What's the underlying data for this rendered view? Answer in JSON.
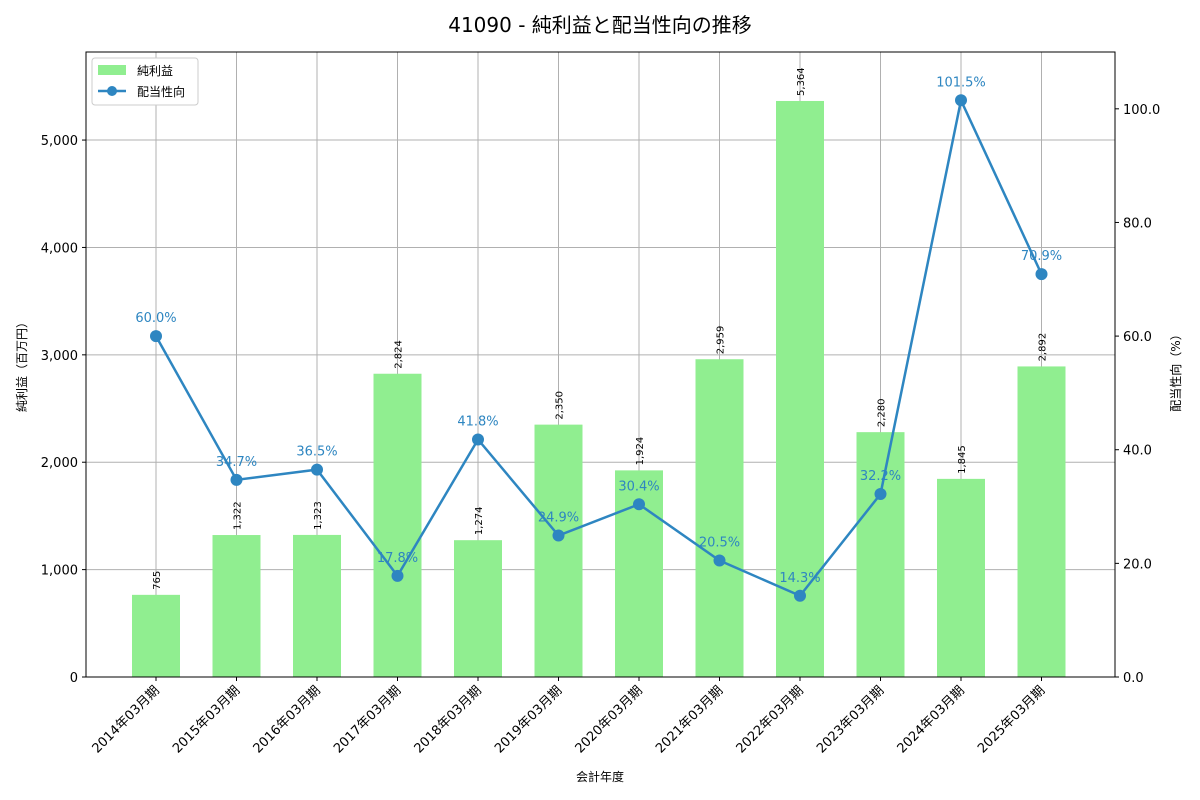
{
  "chart_data": {
    "type": "bar+line",
    "title": "41090 - 純利益と配当性向の推移",
    "xlabel": "会計年度",
    "ylabel_left": "純利益（百万円）",
    "ylabel_right": "配当性向（%）",
    "categories": [
      "2014年03月期",
      "2015年03月期",
      "2016年03月期",
      "2017年03月期",
      "2018年03月期",
      "2019年03月期",
      "2020年03月期",
      "2021年03月期",
      "2022年03月期",
      "2023年03月期",
      "2024年03月期",
      "2025年03月期"
    ],
    "series": [
      {
        "name": "純利益",
        "type": "bar",
        "axis": "left",
        "color": "#90ee90",
        "values": [
          765,
          1322,
          1323,
          2824,
          1274,
          2350,
          1924,
          2959,
          5364,
          2280,
          1845,
          2892
        ],
        "labels": [
          "765",
          "1,322",
          "1,323",
          "2,824",
          "1,274",
          "2,350",
          "1,924",
          "2,959",
          "5,364",
          "2,280",
          "1,845",
          "2,892"
        ]
      },
      {
        "name": "配当性向",
        "type": "line",
        "axis": "right",
        "color": "#2e86c1",
        "values": [
          60.0,
          34.7,
          36.5,
          17.8,
          41.8,
          24.9,
          30.4,
          20.5,
          14.3,
          32.2,
          101.5,
          70.9
        ],
        "labels": [
          "60.0%",
          "34.7%",
          "36.5%",
          "17.8%",
          "41.8%",
          "24.9%",
          "30.4%",
          "20.5%",
          "14.3%",
          "32.2%",
          "101.5%",
          "70.9%"
        ]
      }
    ],
    "ylim_left": [
      0,
      5820
    ],
    "ylim_right": [
      0,
      110
    ],
    "yticks_left": [
      0,
      1000,
      2000,
      3000,
      4000,
      5000
    ],
    "yticks_left_labels": [
      "0",
      "1,000",
      "2,000",
      "3,000",
      "4,000",
      "5,000"
    ],
    "yticks_right": [
      0,
      20,
      40,
      60,
      80,
      100
    ],
    "yticks_right_labels": [
      "0.0",
      "20.0",
      "40.0",
      "60.0",
      "80.0",
      "100.0"
    ],
    "grid": true,
    "legend_position": "upper left"
  }
}
